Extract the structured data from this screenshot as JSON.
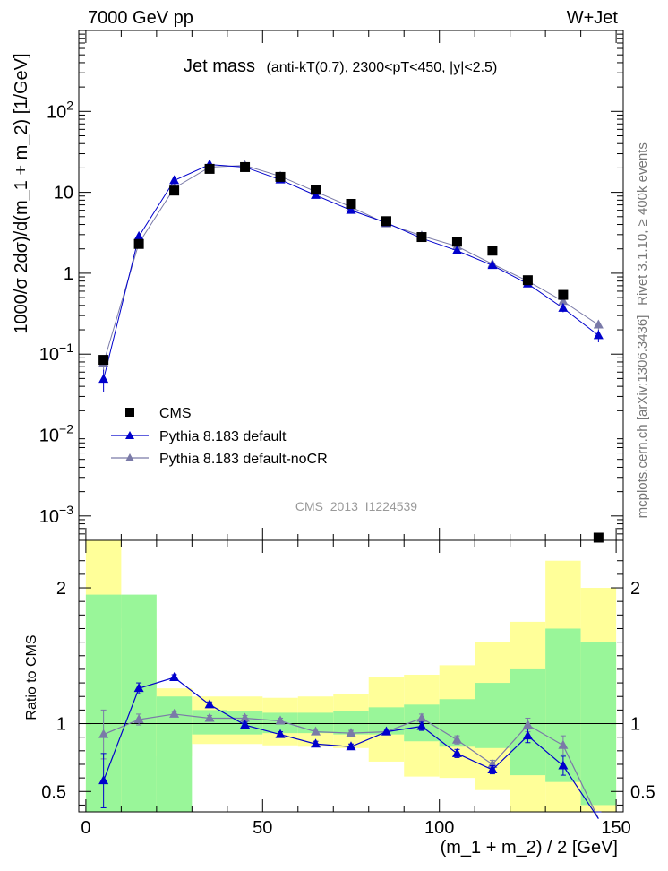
{
  "header": {
    "left": "7000 GeV pp",
    "right": "W+Jet"
  },
  "side_labels": {
    "rivet": "Rivet 3.1.10, ≥ 400k events",
    "arxiv": "mcplots.cern.ch [arXiv:1306.3436]"
  },
  "colors": {
    "cms": "#000000",
    "pythia_default": "#0000cc",
    "pythia_nocr": "#7a7aa8",
    "band_inner": "#99f699",
    "band_outer": "#ffff99"
  },
  "chart_data": [
    {
      "type": "scatter",
      "title": "Jet mass",
      "title_extra": "(anti-kT(0.7), 2300<pT<450, |y|<2.5)",
      "watermark": "CMS_2013_I1224539",
      "ylabel": "1000/σ 2dσ)/d(m_1 + m_2) [1/GeV]",
      "xlabel": "",
      "yscale": "log",
      "xlim": [
        -2,
        152
      ],
      "ylim": [
        0.0005,
        1000
      ],
      "yticks": [
        {
          "value": 0.001,
          "base": "10",
          "exp": "−3"
        },
        {
          "value": 0.01,
          "base": "10",
          "exp": "−2"
        },
        {
          "value": 0.1,
          "base": "10",
          "exp": "−1"
        },
        {
          "value": 1,
          "label": "1"
        },
        {
          "value": 10,
          "label": "10"
        },
        {
          "value": 100,
          "base": "10",
          "exp": "2"
        }
      ],
      "legend_position": "lower-left",
      "series": [
        {
          "name": "CMS",
          "marker": "square",
          "x": [
            5,
            15,
            25,
            35,
            45,
            55,
            65,
            75,
            85,
            95,
            105,
            115,
            125,
            135,
            145
          ],
          "y": [
            0.085,
            2.3,
            10.5,
            19.5,
            20.5,
            15.5,
            10.8,
            7.2,
            4.4,
            2.8,
            2.45,
            1.9,
            0.82,
            0.54,
            0.0004
          ]
        },
        {
          "name": "Pythia 8.183 default",
          "marker": "triangle",
          "x": [
            5,
            15,
            25,
            35,
            45,
            55,
            65,
            75,
            85,
            95,
            105,
            115,
            125,
            135,
            145
          ],
          "y": [
            0.049,
            2.85,
            14.0,
            22.0,
            20.5,
            14.3,
            9.2,
            6.0,
            4.2,
            2.7,
            1.9,
            1.25,
            0.74,
            0.37,
            0.17
          ],
          "yerr": [
            0.015,
            0.15,
            0.4,
            0.6,
            0.5,
            0.4,
            0.3,
            0.2,
            0.15,
            0.12,
            0.1,
            0.07,
            0.05,
            0.04,
            0.03
          ]
        },
        {
          "name": "Pythia 8.183 default-noCR",
          "marker": "triangle",
          "x": [
            5,
            15,
            25,
            35,
            45,
            55,
            65,
            75,
            85,
            95,
            105,
            115,
            125,
            135,
            145
          ],
          "y": [
            0.078,
            2.35,
            11.3,
            20.5,
            21.5,
            15.8,
            10.2,
            6.6,
            4.1,
            2.9,
            2.15,
            1.3,
            0.8,
            0.45,
            0.23
          ],
          "yerr": [
            0.015,
            0.12,
            0.35,
            0.5,
            0.5,
            0.4,
            0.3,
            0.2,
            0.15,
            0.12,
            0.1,
            0.07,
            0.05,
            0.04,
            0.03
          ]
        }
      ]
    },
    {
      "type": "scatter",
      "title": "",
      "ylabel": "Ratio to CMS",
      "xlabel": "(m_1 + m_2) / 2 [GeV]",
      "xlim": [
        -2,
        152
      ],
      "ylim": [
        0.35,
        2.35
      ],
      "xticks": [
        0,
        50,
        100,
        150
      ],
      "yticks": [
        0.5,
        1,
        2
      ],
      "bands": {
        "x_edges": [
          0,
          10,
          20,
          30,
          40,
          50,
          60,
          70,
          80,
          90,
          100,
          110,
          120,
          130,
          140,
          150
        ],
        "inner_lo": [
          0.0,
          0.0,
          0.0,
          0.92,
          0.92,
          0.93,
          0.93,
          0.92,
          0.92,
          0.87,
          0.83,
          0.82,
          0.62,
          0.57,
          0.4
        ],
        "inner_hi": [
          1.95,
          1.95,
          1.2,
          1.1,
          1.09,
          1.08,
          1.08,
          1.09,
          1.12,
          1.14,
          1.18,
          1.3,
          1.4,
          1.7,
          1.6
        ],
        "outer_lo": [
          0.0,
          0.0,
          0.76,
          0.85,
          0.85,
          0.84,
          0.83,
          0.82,
          0.72,
          0.61,
          0.6,
          0.51,
          0.0,
          0.0,
          0.0
        ],
        "outer_hi": [
          2.35,
          1.7,
          1.26,
          1.2,
          1.2,
          1.19,
          1.2,
          1.22,
          1.34,
          1.36,
          1.43,
          1.6,
          1.75,
          2.2,
          2.0
        ]
      },
      "series": [
        {
          "name": "Pythia 8.183 default",
          "x": [
            5,
            15,
            25,
            35,
            45,
            55,
            65,
            75,
            85,
            95,
            105,
            115,
            125,
            135,
            145
          ],
          "y": [
            0.58,
            1.26,
            1.34,
            1.14,
            0.99,
            0.92,
            0.85,
            0.83,
            0.94,
            0.98,
            0.78,
            0.66,
            0.91,
            0.69,
            0.3
          ],
          "yerr": [
            0.2,
            0.04,
            0.02,
            0.02,
            0.02,
            0.02,
            0.02,
            0.02,
            0.02,
            0.03,
            0.03,
            0.03,
            0.05,
            0.07,
            0.05
          ]
        },
        {
          "name": "Pythia 8.183 default-noCR",
          "x": [
            5,
            15,
            25,
            35,
            45,
            55,
            65,
            75,
            85,
            95,
            105,
            115,
            125,
            135,
            145
          ],
          "y": [
            0.92,
            1.03,
            1.07,
            1.04,
            1.04,
            1.02,
            0.94,
            0.93,
            0.94,
            1.04,
            0.88,
            0.7,
            0.99,
            0.84,
            0.3
          ],
          "yerr": [
            0.18,
            0.04,
            0.02,
            0.02,
            0.02,
            0.02,
            0.02,
            0.02,
            0.02,
            0.03,
            0.03,
            0.03,
            0.05,
            0.07,
            0.05
          ]
        }
      ]
    }
  ]
}
